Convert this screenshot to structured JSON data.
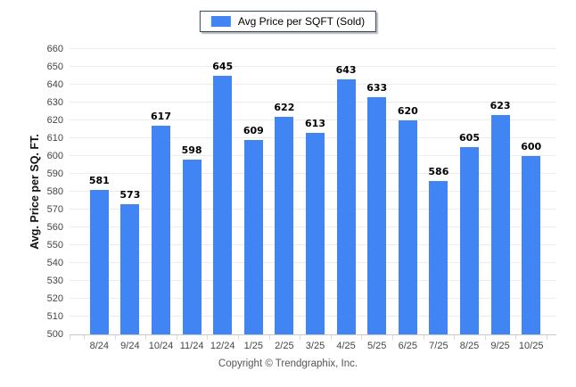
{
  "chart_data": {
    "type": "bar",
    "legend_label": "Avg Price per SQFT (Sold)",
    "categories": [
      "8/24",
      "9/24",
      "10/24",
      "11/24",
      "12/24",
      "1/25",
      "2/25",
      "3/25",
      "4/25",
      "5/25",
      "6/25",
      "7/25",
      "8/25",
      "9/25",
      "10/25"
    ],
    "values": [
      581,
      573,
      617,
      598,
      645,
      609,
      622,
      613,
      643,
      633,
      620,
      586,
      605,
      623,
      600
    ],
    "title": "",
    "xlabel": "",
    "ylabel": "Avg. Price per SQ. FT.",
    "ylim": [
      500,
      660
    ],
    "ytick_step": 10,
    "grid": true,
    "legend_position": "top-center",
    "bar_color": "#4184F3"
  },
  "footer": {
    "copyright": "Copyright © Trendgraphix, Inc."
  }
}
